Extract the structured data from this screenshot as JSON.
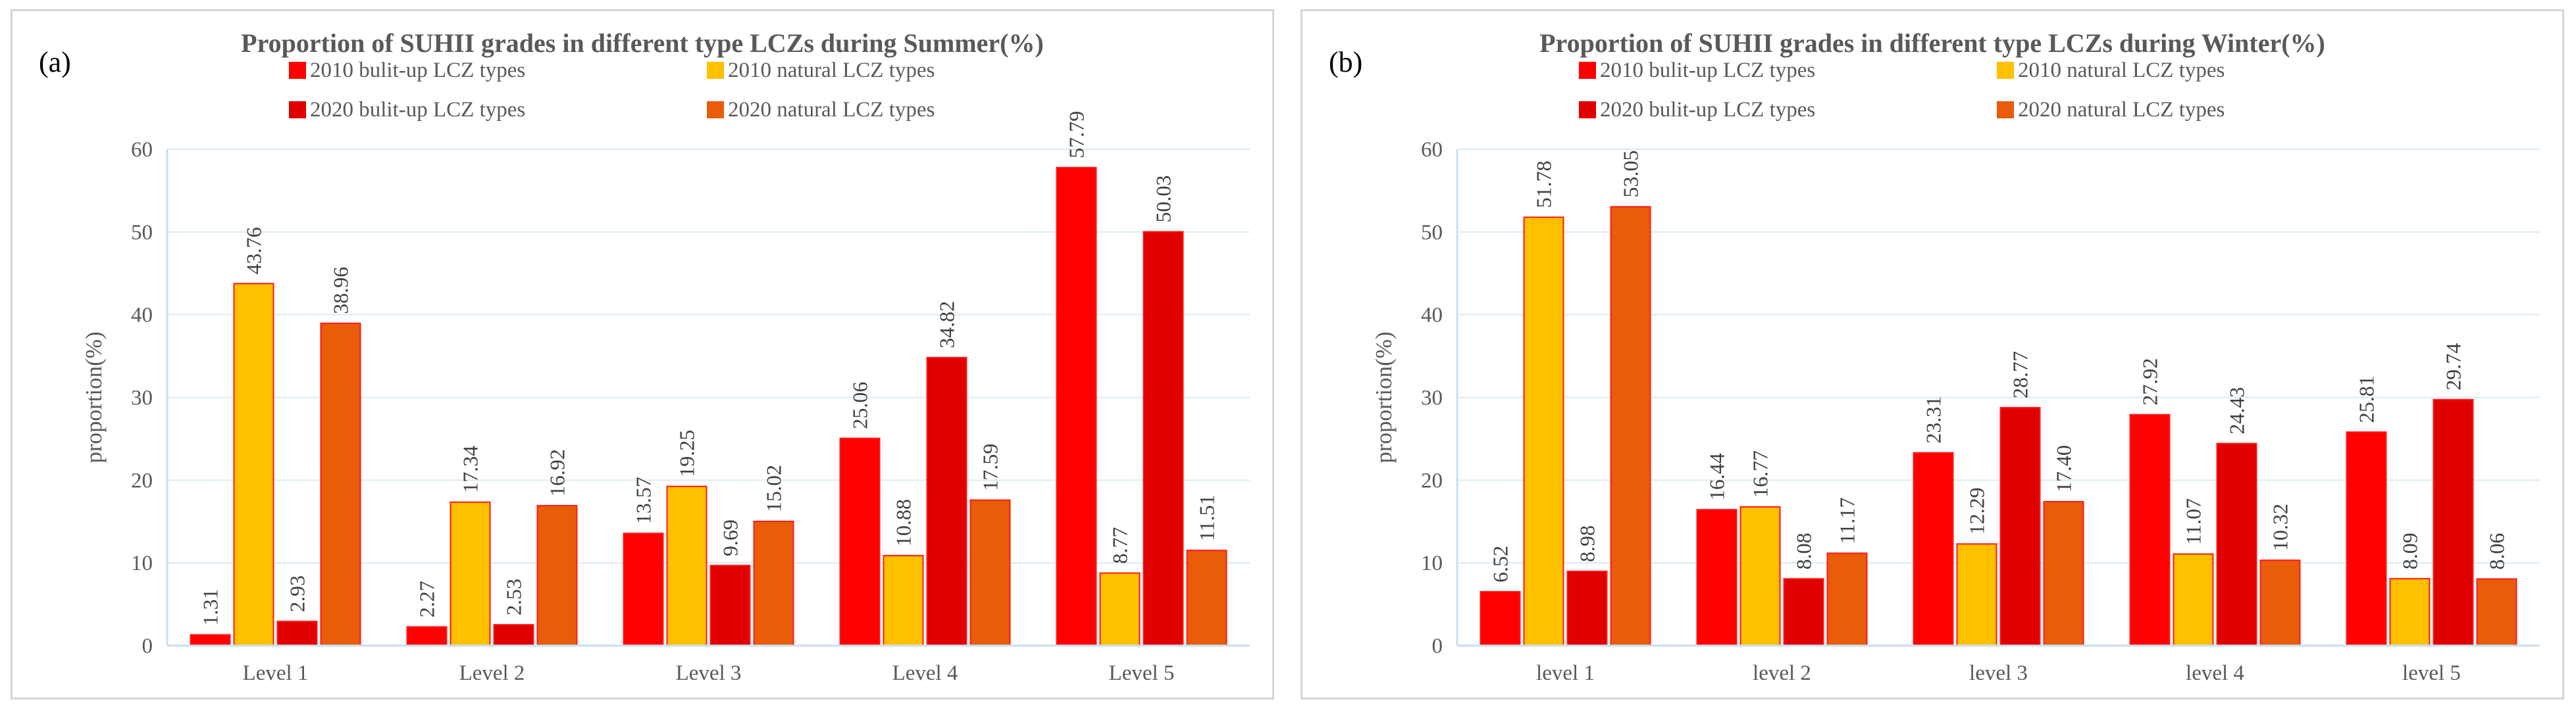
{
  "chart_data": [
    {
      "type": "bar",
      "panel_label": "(a)",
      "title": "Proportion of SUHII grades in different type LCZs during Summer(%)",
      "xlabel": "",
      "ylabel": "proportion(%)",
      "ylim": [
        0,
        60
      ],
      "yticks": [
        "0",
        "10",
        "20",
        "30",
        "40",
        "50",
        "60"
      ],
      "grid": true,
      "legend_position": "top",
      "categories": [
        "Level 1",
        "Level 2",
        "Level 3",
        "Level 4",
        "Level 5"
      ],
      "series": [
        {
          "name": "2010 bulit-up LCZ types",
          "color": "#ff0000",
          "values": [
            1.31,
            2.27,
            13.57,
            25.06,
            57.79
          ],
          "labels": [
            "1.31",
            "2.27",
            "13.57",
            "25.06",
            "57.79"
          ]
        },
        {
          "name": "2010 natural LCZ types",
          "color": "#ffc000",
          "values": [
            43.76,
            17.34,
            19.25,
            10.88,
            8.77
          ],
          "labels": [
            "43.76",
            "17.34",
            "19.25",
            "10.88",
            "8.77"
          ]
        },
        {
          "name": "2020 bulit-up LCZ types",
          "color": "#e00000",
          "values": [
            2.93,
            2.53,
            9.69,
            34.82,
            50.03
          ],
          "labels": [
            "2.93",
            "2.53",
            "9.69",
            "34.82",
            "50.03"
          ]
        },
        {
          "name": "2020 natural LCZ types",
          "color": "#e85c0a",
          "values": [
            38.96,
            16.92,
            15.02,
            17.59,
            11.51
          ],
          "labels": [
            "38.96",
            "16.92",
            "15.02",
            "17.59",
            "11.51"
          ]
        }
      ]
    },
    {
      "type": "bar",
      "panel_label": "(b)",
      "title": "Proportion of SUHII grades in different type LCZs during Winter(%)",
      "xlabel": "",
      "ylabel": "proportion(%)",
      "ylim": [
        0,
        60
      ],
      "yticks": [
        "0",
        "10",
        "20",
        "30",
        "40",
        "50",
        "60"
      ],
      "grid": true,
      "legend_position": "top",
      "categories": [
        "level 1",
        "level 2",
        "level 3",
        "level 4",
        "level 5"
      ],
      "series": [
        {
          "name": "2010 bulit-up LCZ types",
          "color": "#ff0000",
          "values": [
            6.52,
            16.44,
            23.31,
            27.92,
            25.81
          ],
          "labels": [
            "6.52",
            "16.44",
            "23.31",
            "27.92",
            "25.81"
          ]
        },
        {
          "name": "2010 natural LCZ types",
          "color": "#ffc000",
          "values": [
            51.78,
            16.77,
            12.29,
            11.07,
            8.09
          ],
          "labels": [
            "51.78",
            "16.77",
            "12.29",
            "11.07",
            "8.09"
          ]
        },
        {
          "name": "2020 bulit-up LCZ types",
          "color": "#e00000",
          "values": [
            8.98,
            8.08,
            28.77,
            24.43,
            29.74
          ],
          "labels": [
            "8.98",
            "8.08",
            "28.77",
            "24.43",
            "29.74"
          ]
        },
        {
          "name": "2020 natural LCZ types",
          "color": "#e85c0a",
          "values": [
            53.05,
            11.17,
            17.4,
            10.32,
            8.06
          ],
          "labels": [
            "53.05",
            "11.17",
            "17.40",
            "10.32",
            "8.06"
          ]
        }
      ]
    }
  ]
}
